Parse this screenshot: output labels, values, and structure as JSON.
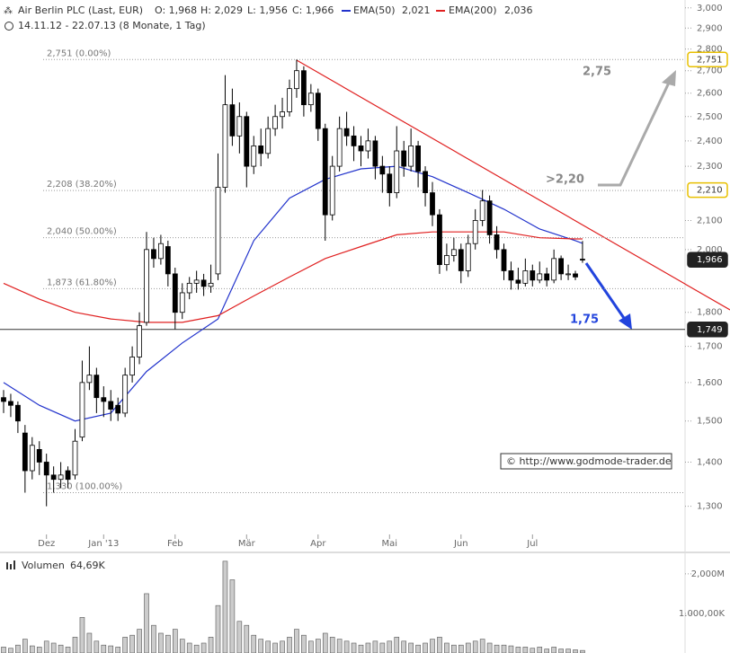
{
  "chart_data": {
    "type": "candlestick",
    "title": "Air Berlin PLC (Last, EUR)",
    "ohlc_text": [
      "O: 1,968",
      "H: 2,029",
      "L: 1,956",
      "C: 1,966"
    ],
    "subtitle": "14.11.12 - 22.07.13 (8 Monate, 1 Tag)",
    "ohlc": [
      [
        1.56,
        1.58,
        1.52,
        1.55
      ],
      [
        1.55,
        1.57,
        1.51,
        1.54
      ],
      [
        1.54,
        1.55,
        1.47,
        1.5
      ],
      [
        1.47,
        1.49,
        1.33,
        1.38
      ],
      [
        1.38,
        1.46,
        1.36,
        1.44
      ],
      [
        1.43,
        1.45,
        1.37,
        1.4
      ],
      [
        1.4,
        1.42,
        1.3,
        1.37
      ],
      [
        1.37,
        1.39,
        1.33,
        1.36
      ],
      [
        1.36,
        1.4,
        1.34,
        1.37
      ],
      [
        1.38,
        1.39,
        1.34,
        1.36
      ],
      [
        1.37,
        1.48,
        1.36,
        1.45
      ],
      [
        1.46,
        1.66,
        1.45,
        1.6
      ],
      [
        1.6,
        1.7,
        1.58,
        1.62
      ],
      [
        1.62,
        1.64,
        1.52,
        1.56
      ],
      [
        1.56,
        1.59,
        1.51,
        1.55
      ],
      [
        1.55,
        1.58,
        1.5,
        1.53
      ],
      [
        1.54,
        1.56,
        1.5,
        1.52
      ],
      [
        1.52,
        1.64,
        1.51,
        1.62
      ],
      [
        1.62,
        1.7,
        1.6,
        1.67
      ],
      [
        1.67,
        1.8,
        1.65,
        1.76
      ],
      [
        1.77,
        2.06,
        1.76,
        2.0
      ],
      [
        2.0,
        2.04,
        1.94,
        1.97
      ],
      [
        1.97,
        2.05,
        1.95,
        2.02
      ],
      [
        2.01,
        2.03,
        1.88,
        1.92
      ],
      [
        1.92,
        1.94,
        1.75,
        1.8
      ],
      [
        1.8,
        1.89,
        1.78,
        1.86
      ],
      [
        1.86,
        1.91,
        1.84,
        1.89
      ],
      [
        1.89,
        1.93,
        1.86,
        1.9
      ],
      [
        1.9,
        1.92,
        1.85,
        1.88
      ],
      [
        1.88,
        1.95,
        1.86,
        1.89
      ],
      [
        1.92,
        2.35,
        1.9,
        2.22
      ],
      [
        2.22,
        2.68,
        2.2,
        2.55
      ],
      [
        2.55,
        2.62,
        2.38,
        2.42
      ],
      [
        2.42,
        2.56,
        2.35,
        2.5
      ],
      [
        2.5,
        2.52,
        2.22,
        2.3
      ],
      [
        2.3,
        2.42,
        2.27,
        2.38
      ],
      [
        2.38,
        2.45,
        2.3,
        2.35
      ],
      [
        2.35,
        2.5,
        2.33,
        2.45
      ],
      [
        2.45,
        2.55,
        2.42,
        2.5
      ],
      [
        2.5,
        2.58,
        2.45,
        2.52
      ],
      [
        2.52,
        2.66,
        2.5,
        2.62
      ],
      [
        2.62,
        2.751,
        2.58,
        2.7
      ],
      [
        2.7,
        2.72,
        2.5,
        2.55
      ],
      [
        2.55,
        2.64,
        2.52,
        2.6
      ],
      [
        2.6,
        2.62,
        2.4,
        2.45
      ],
      [
        2.45,
        2.47,
        2.03,
        2.12
      ],
      [
        2.12,
        2.34,
        2.1,
        2.3
      ],
      [
        2.3,
        2.5,
        2.28,
        2.45
      ],
      [
        2.45,
        2.52,
        2.38,
        2.42
      ],
      [
        2.42,
        2.46,
        2.32,
        2.38
      ],
      [
        2.38,
        2.42,
        2.3,
        2.36
      ],
      [
        2.36,
        2.45,
        2.33,
        2.4
      ],
      [
        2.4,
        2.42,
        2.25,
        2.3
      ],
      [
        2.3,
        2.34,
        2.2,
        2.27
      ],
      [
        2.27,
        2.3,
        2.15,
        2.2
      ],
      [
        2.2,
        2.46,
        2.18,
        2.36
      ],
      [
        2.36,
        2.4,
        2.26,
        2.3
      ],
      [
        2.3,
        2.45,
        2.28,
        2.38
      ],
      [
        2.38,
        2.4,
        2.22,
        2.28
      ],
      [
        2.28,
        2.3,
        2.15,
        2.2
      ],
      [
        2.2,
        2.24,
        2.08,
        2.12
      ],
      [
        2.12,
        2.14,
        1.92,
        1.95
      ],
      [
        1.95,
        2.02,
        1.93,
        1.98
      ],
      [
        1.98,
        2.04,
        1.96,
        2.0
      ],
      [
        2.0,
        2.02,
        1.89,
        1.93
      ],
      [
        1.93,
        2.05,
        1.91,
        2.02
      ],
      [
        2.02,
        2.14,
        2.0,
        2.1
      ],
      [
        2.1,
        2.21,
        2.08,
        2.17
      ],
      [
        2.17,
        2.19,
        2.02,
        2.05
      ],
      [
        2.05,
        2.08,
        1.97,
        2.0
      ],
      [
        2.0,
        2.02,
        1.9,
        1.93
      ],
      [
        1.93,
        1.96,
        1.87,
        1.9
      ],
      [
        1.9,
        1.94,
        1.87,
        1.89
      ],
      [
        1.89,
        1.97,
        1.88,
        1.93
      ],
      [
        1.93,
        1.95,
        1.88,
        1.9
      ],
      [
        1.9,
        1.96,
        1.89,
        1.92
      ],
      [
        1.92,
        1.94,
        1.88,
        1.9
      ],
      [
        1.9,
        2.0,
        1.89,
        1.97
      ],
      [
        1.97,
        1.98,
        1.9,
        1.92
      ],
      [
        1.92,
        1.95,
        1.9,
        1.92
      ],
      [
        1.92,
        1.93,
        1.9,
        1.91
      ],
      [
        1.968,
        2.029,
        1.956,
        1.966
      ]
    ],
    "series": [
      {
        "name": "EMA(50)",
        "legend_value": "2,021",
        "color": "#2233cc",
        "x": [
          0,
          5,
          10,
          15,
          20,
          25,
          30,
          35,
          40,
          45,
          50,
          55,
          60,
          65,
          70,
          75,
          80,
          81
        ],
        "values": [
          1.6,
          1.54,
          1.5,
          1.52,
          1.63,
          1.71,
          1.78,
          2.03,
          2.18,
          2.25,
          2.29,
          2.3,
          2.26,
          2.2,
          2.14,
          2.07,
          2.03,
          2.021
        ]
      },
      {
        "name": "EMA(200)",
        "legend_value": "2,036",
        "color": "#e02020",
        "x": [
          0,
          5,
          10,
          15,
          20,
          25,
          30,
          35,
          40,
          45,
          50,
          55,
          60,
          65,
          70,
          75,
          80,
          81
        ],
        "values": [
          1.89,
          1.84,
          1.8,
          1.78,
          1.77,
          1.77,
          1.79,
          1.85,
          1.91,
          1.97,
          2.01,
          2.05,
          2.06,
          2.06,
          2.06,
          2.04,
          2.036,
          2.036
        ]
      }
    ],
    "ylim": [
      1.24,
      3.04
    ],
    "log_scale": true,
    "yticks": [
      {
        "value": 3.0,
        "label": "3,000"
      },
      {
        "value": 2.9,
        "label": "2,900"
      },
      {
        "value": 2.8,
        "label": "2,800"
      },
      {
        "value": 2.7,
        "label": "2,700"
      },
      {
        "value": 2.6,
        "label": "2,600"
      },
      {
        "value": 2.5,
        "label": "2,500"
      },
      {
        "value": 2.4,
        "label": "2,400"
      },
      {
        "value": 2.3,
        "label": "2,300"
      },
      {
        "value": 2.1,
        "label": "2,100"
      },
      {
        "value": 2.0,
        "label": "2,000"
      },
      {
        "value": 1.8,
        "label": "1,800"
      },
      {
        "value": 1.7,
        "label": "1,700"
      },
      {
        "value": 1.6,
        "label": "1,600"
      },
      {
        "value": 1.5,
        "label": "1,500"
      },
      {
        "value": 1.4,
        "label": "1,400"
      },
      {
        "value": 1.3,
        "label": "1,300"
      }
    ],
    "xticks": [
      {
        "value": 6,
        "label": "Dez"
      },
      {
        "value": 14,
        "label": "Jan '13"
      },
      {
        "value": 24,
        "label": "Feb"
      },
      {
        "value": 34,
        "label": "Mär"
      },
      {
        "value": 44,
        "label": "Apr"
      },
      {
        "value": 54,
        "label": "Mai"
      },
      {
        "value": 64,
        "label": "Jun"
      },
      {
        "value": 74,
        "label": "Jul"
      }
    ],
    "fib_levels": [
      {
        "value": 2.751,
        "label": "2,751 (0.00%)"
      },
      {
        "value": 2.208,
        "label": "2,208 (38.20%)"
      },
      {
        "value": 2.04,
        "label": "2,040 (50.00%)"
      },
      {
        "value": 1.873,
        "label": "1,873 (61.80%)"
      },
      {
        "value": 1.33,
        "label": "1,330 (100.00%)"
      }
    ],
    "price_labels": [
      {
        "value": 2.751,
        "label": "2,751",
        "style": "yellow"
      },
      {
        "value": 2.21,
        "label": "2,210",
        "style": "yellow"
      },
      {
        "value": 1.966,
        "label": "1,966",
        "style": "black"
      },
      {
        "value": 1.749,
        "label": "1,749",
        "style": "black"
      }
    ],
    "support_line": 1.749,
    "annotations": [
      "2,75",
      ">2,20",
      "1,75"
    ],
    "copyright": "© http://www.godmode-trader.de",
    "volume": {
      "title": "Volumen",
      "last_label": "64,69K",
      "values": [
        150000,
        120000,
        200000,
        350000,
        180000,
        150000,
        300000,
        250000,
        200000,
        150000,
        400000,
        900000,
        500000,
        300000,
        200000,
        180000,
        150000,
        400000,
        450000,
        600000,
        1500000,
        700000,
        500000,
        450000,
        600000,
        350000,
        250000,
        200000,
        250000,
        400000,
        1200000,
        2320000,
        1850000,
        800000,
        700000,
        450000,
        350000,
        300000,
        250000,
        300000,
        400000,
        600000,
        450000,
        300000,
        350000,
        500000,
        400000,
        350000,
        300000,
        250000,
        200000,
        250000,
        300000,
        250000,
        300000,
        400000,
        300000,
        250000,
        200000,
        250000,
        350000,
        400000,
        250000,
        200000,
        200000,
        250000,
        300000,
        350000,
        250000,
        200000,
        200000,
        180000,
        150000,
        150000,
        120000,
        150000,
        100000,
        150000,
        100000,
        100000,
        80000,
        64690
      ],
      "ylim": [
        0,
        2430000
      ],
      "yticks": [
        {
          "value": 2000000,
          "label": "2,000M"
        },
        {
          "value": 1000000,
          "label": "1.000,00K"
        }
      ]
    }
  }
}
